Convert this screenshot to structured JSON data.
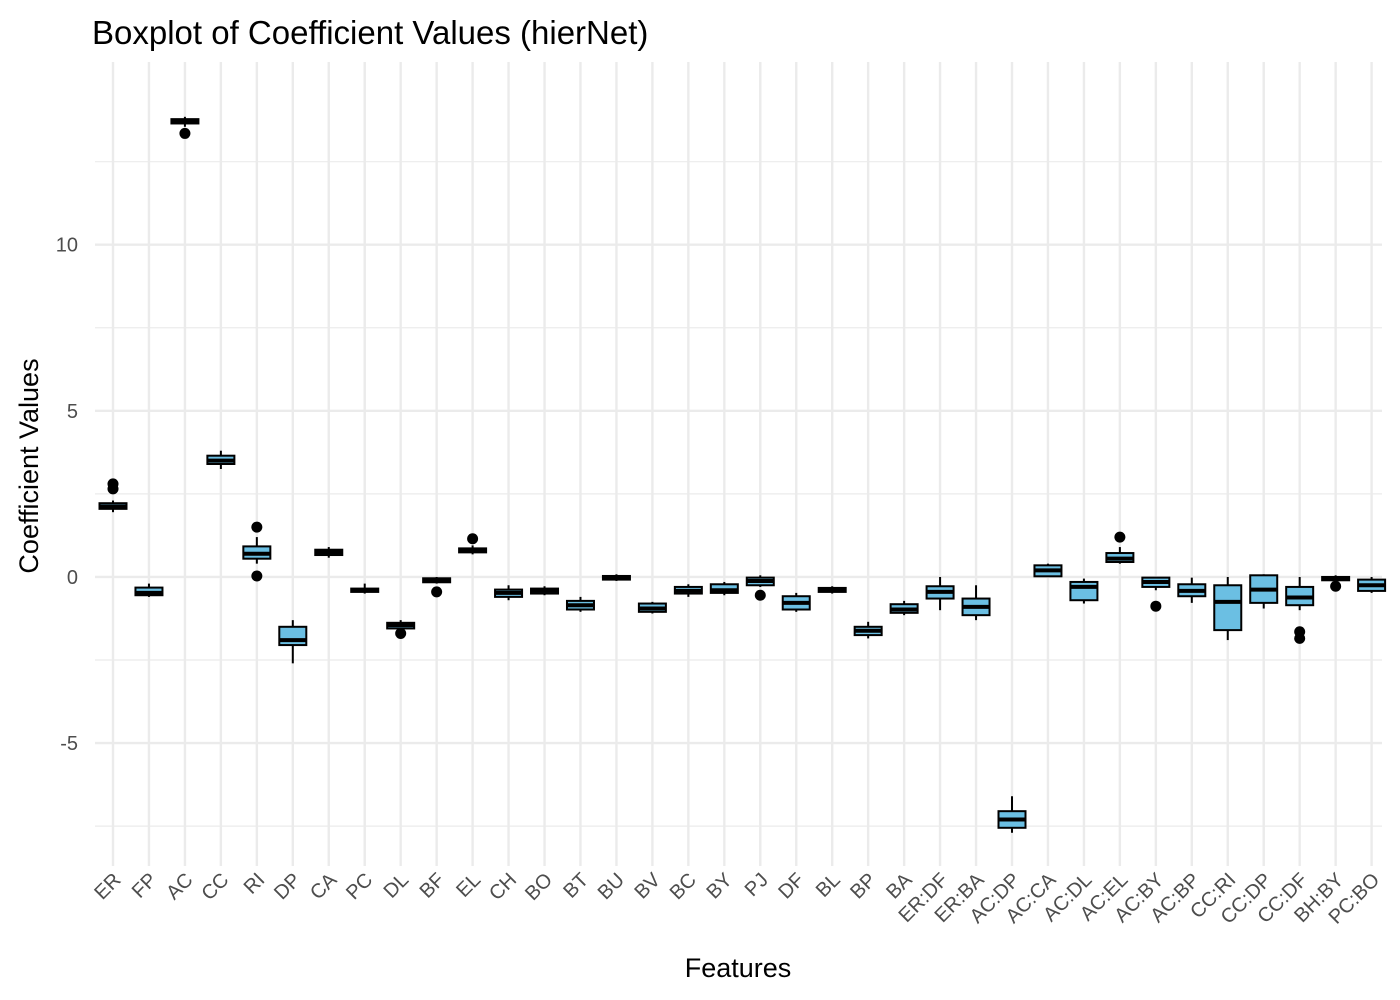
{
  "chart_data": {
    "type": "boxplot",
    "title": "Boxplot of Coefficient Values (hierNet)",
    "xlabel": "Features",
    "ylabel": "Coefficient Values",
    "ylim": [
      -8.7,
      15.5
    ],
    "y_ticks": [
      -5,
      0,
      5,
      10
    ],
    "y_tick_labels": [
      "-5",
      "0",
      "5",
      "10"
    ],
    "grid": true,
    "fill_color": "#6BBFE3",
    "box_stroke_color": "#000000",
    "grid_color": "#EBEBEB",
    "categories": [
      "ER",
      "FP",
      "AC",
      "CC",
      "RI",
      "DP",
      "CA",
      "PC",
      "DL",
      "BF",
      "EL",
      "CH",
      "BO",
      "BT",
      "BU",
      "BV",
      "BC",
      "BY",
      "PJ",
      "DF",
      "BL",
      "BP",
      "BA",
      "ER:DF",
      "ER:BA",
      "AC:DP",
      "AC:CA",
      "AC:DL",
      "AC:EL",
      "AC:BY",
      "AC:BP",
      "CC:RI",
      "CC:DP",
      "CC:DF",
      "BH:BY",
      "PC:BO"
    ],
    "boxes": [
      {
        "min": 1.95,
        "q1": 2.05,
        "median": 2.12,
        "q3": 2.22,
        "max": 2.3,
        "outliers": [
          2.65,
          2.8
        ]
      },
      {
        "min": -0.6,
        "q1": -0.55,
        "median": -0.48,
        "q3": -0.32,
        "max": -0.2,
        "outliers": []
      },
      {
        "min": 13.55,
        "q1": 13.65,
        "median": 13.72,
        "q3": 13.78,
        "max": 13.85,
        "outliers": [
          13.35
        ]
      },
      {
        "min": 3.25,
        "q1": 3.4,
        "median": 3.5,
        "q3": 3.65,
        "max": 3.8,
        "outliers": []
      },
      {
        "min": 0.4,
        "q1": 0.55,
        "median": 0.7,
        "q3": 0.92,
        "max": 1.2,
        "outliers": [
          1.5,
          0.03
        ]
      },
      {
        "min": -2.6,
        "q1": -2.05,
        "median": -1.9,
        "q3": -1.5,
        "max": -1.3,
        "outliers": []
      },
      {
        "min": 0.58,
        "q1": 0.66,
        "median": 0.74,
        "q3": 0.82,
        "max": 0.9,
        "outliers": []
      },
      {
        "min": -0.5,
        "q1": -0.45,
        "median": -0.4,
        "q3": -0.35,
        "max": -0.2,
        "outliers": []
      },
      {
        "min": -1.6,
        "q1": -1.55,
        "median": -1.45,
        "q3": -1.38,
        "max": -1.3,
        "outliers": [
          -1.7
        ]
      },
      {
        "min": -0.2,
        "q1": -0.16,
        "median": -0.1,
        "q3": -0.04,
        "max": 0.0,
        "outliers": [
          -0.45
        ]
      },
      {
        "min": 0.68,
        "q1": 0.74,
        "median": 0.8,
        "q3": 0.86,
        "max": 0.95,
        "outliers": [
          1.15
        ]
      },
      {
        "min": -0.7,
        "q1": -0.6,
        "median": -0.48,
        "q3": -0.38,
        "max": -0.25,
        "outliers": []
      },
      {
        "min": -0.55,
        "q1": -0.5,
        "median": -0.42,
        "q3": -0.35,
        "max": -0.28,
        "outliers": []
      },
      {
        "min": -1.05,
        "q1": -0.98,
        "median": -0.85,
        "q3": -0.72,
        "max": -0.6,
        "outliers": []
      },
      {
        "min": -0.12,
        "q1": -0.08,
        "median": -0.02,
        "q3": 0.03,
        "max": 0.08,
        "outliers": []
      },
      {
        "min": -1.1,
        "q1": -1.05,
        "median": -0.95,
        "q3": -0.8,
        "max": -0.75,
        "outliers": []
      },
      {
        "min": -0.6,
        "q1": -0.5,
        "median": -0.42,
        "q3": -0.3,
        "max": -0.22,
        "outliers": []
      },
      {
        "min": -0.55,
        "q1": -0.48,
        "median": -0.4,
        "q3": -0.22,
        "max": -0.15,
        "outliers": []
      },
      {
        "min": -0.3,
        "q1": -0.25,
        "median": -0.12,
        "q3": -0.02,
        "max": 0.05,
        "outliers": [
          -0.55
        ]
      },
      {
        "min": -1.05,
        "q1": -0.98,
        "median": -0.78,
        "q3": -0.58,
        "max": -0.48,
        "outliers": []
      },
      {
        "min": -0.5,
        "q1": -0.45,
        "median": -0.38,
        "q3": -0.33,
        "max": -0.28,
        "outliers": []
      },
      {
        "min": -1.85,
        "q1": -1.75,
        "median": -1.62,
        "q3": -1.5,
        "max": -1.35,
        "outliers": []
      },
      {
        "min": -1.15,
        "q1": -1.08,
        "median": -0.98,
        "q3": -0.82,
        "max": -0.72,
        "outliers": []
      },
      {
        "min": -1.0,
        "q1": -0.65,
        "median": -0.45,
        "q3": -0.28,
        "max": 0.0,
        "outliers": []
      },
      {
        "min": -1.3,
        "q1": -1.15,
        "median": -0.9,
        "q3": -0.65,
        "max": -0.25,
        "outliers": []
      },
      {
        "min": -7.7,
        "q1": -7.55,
        "median": -7.3,
        "q3": -7.05,
        "max": -6.6,
        "outliers": []
      },
      {
        "min": 0.0,
        "q1": 0.02,
        "median": 0.2,
        "q3": 0.35,
        "max": 0.4,
        "outliers": []
      },
      {
        "min": -0.8,
        "q1": -0.7,
        "median": -0.3,
        "q3": -0.15,
        "max": -0.05,
        "outliers": []
      },
      {
        "min": 0.4,
        "q1": 0.45,
        "median": 0.55,
        "q3": 0.72,
        "max": 0.9,
        "outliers": [
          1.2
        ]
      },
      {
        "min": -0.4,
        "q1": -0.3,
        "median": -0.15,
        "q3": -0.02,
        "max": 0.0,
        "outliers": [
          -0.88
        ]
      },
      {
        "min": -0.78,
        "q1": -0.58,
        "median": -0.42,
        "q3": -0.22,
        "max": -0.02,
        "outliers": []
      },
      {
        "min": -1.9,
        "q1": -1.6,
        "median": -0.75,
        "q3": -0.25,
        "max": 0.0,
        "outliers": []
      },
      {
        "min": -0.95,
        "q1": -0.78,
        "median": -0.38,
        "q3": 0.05,
        "max": 0.08,
        "outliers": []
      },
      {
        "min": -1.0,
        "q1": -0.85,
        "median": -0.62,
        "q3": -0.3,
        "max": 0.0,
        "outliers": [
          -1.65,
          -1.85
        ]
      },
      {
        "min": -0.15,
        "q1": -0.1,
        "median": -0.05,
        "q3": 0.0,
        "max": 0.05,
        "outliers": [
          -0.28
        ]
      },
      {
        "min": -0.48,
        "q1": -0.42,
        "median": -0.25,
        "q3": -0.08,
        "max": 0.0,
        "outliers": []
      }
    ]
  }
}
